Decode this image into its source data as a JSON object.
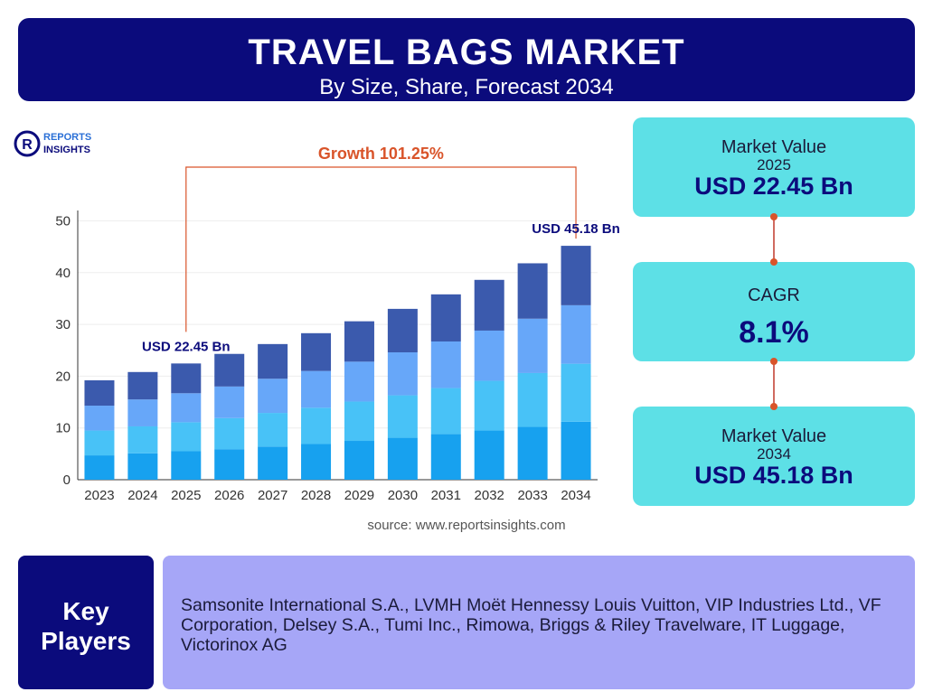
{
  "header": {
    "title": "TRAVEL BAGS MARKET",
    "subtitle": "By Size, Share, Forecast 2034"
  },
  "logo": {
    "line1": "REPORTS",
    "line2": "INSIGHTS"
  },
  "chart_data": {
    "type": "bar",
    "stacked": true,
    "categories": [
      "2023",
      "2024",
      "2025",
      "2026",
      "2027",
      "2028",
      "2029",
      "2030",
      "2031",
      "2032",
      "2033",
      "2034"
    ],
    "series": [
      {
        "color": "#17a1ef",
        "values": [
          4.7,
          5.1,
          5.5,
          5.9,
          6.4,
          6.9,
          7.5,
          8.1,
          8.8,
          9.5,
          10.2,
          11.2
        ]
      },
      {
        "color": "#48c2f7",
        "values": [
          4.8,
          5.2,
          5.6,
          6.0,
          6.5,
          7.0,
          7.6,
          8.2,
          8.9,
          9.6,
          10.4,
          11.2
        ]
      },
      {
        "color": "#67a7f9",
        "values": [
          4.8,
          5.2,
          5.6,
          6.1,
          6.6,
          7.1,
          7.7,
          8.3,
          9.0,
          9.7,
          10.5,
          11.3
        ]
      },
      {
        "color": "#3b5aad",
        "values": [
          4.9,
          5.3,
          5.75,
          6.3,
          6.7,
          7.3,
          7.8,
          8.4,
          9.1,
          9.8,
          10.7,
          11.48
        ]
      }
    ],
    "ylim": [
      0,
      52
    ],
    "yticks": [
      0,
      10,
      20,
      30,
      40,
      50
    ],
    "grid": true,
    "annotations": [
      "USD 22.45 Bn",
      "USD 45.18 Bn",
      "Growth 101.25%"
    ],
    "source": "source: www.reportsinsights.com"
  },
  "stats": [
    {
      "label": "Market Value",
      "year": "2025",
      "value": "USD 22.45 Bn"
    },
    {
      "label": "CAGR",
      "value": "8.1%"
    },
    {
      "label": "Market Value",
      "year": "2034",
      "value": "USD 45.18 Bn"
    }
  ],
  "key_players": {
    "title": "Key Players",
    "text": "Samsonite International S.A., LVMH Moët Hennessy Louis Vuitton, VIP Industries Ltd., VF Corporation, Delsey S.A., Tumi Inc., Rimowa, Briggs & Riley Travelware, IT Luggage, Victorinox AG"
  }
}
